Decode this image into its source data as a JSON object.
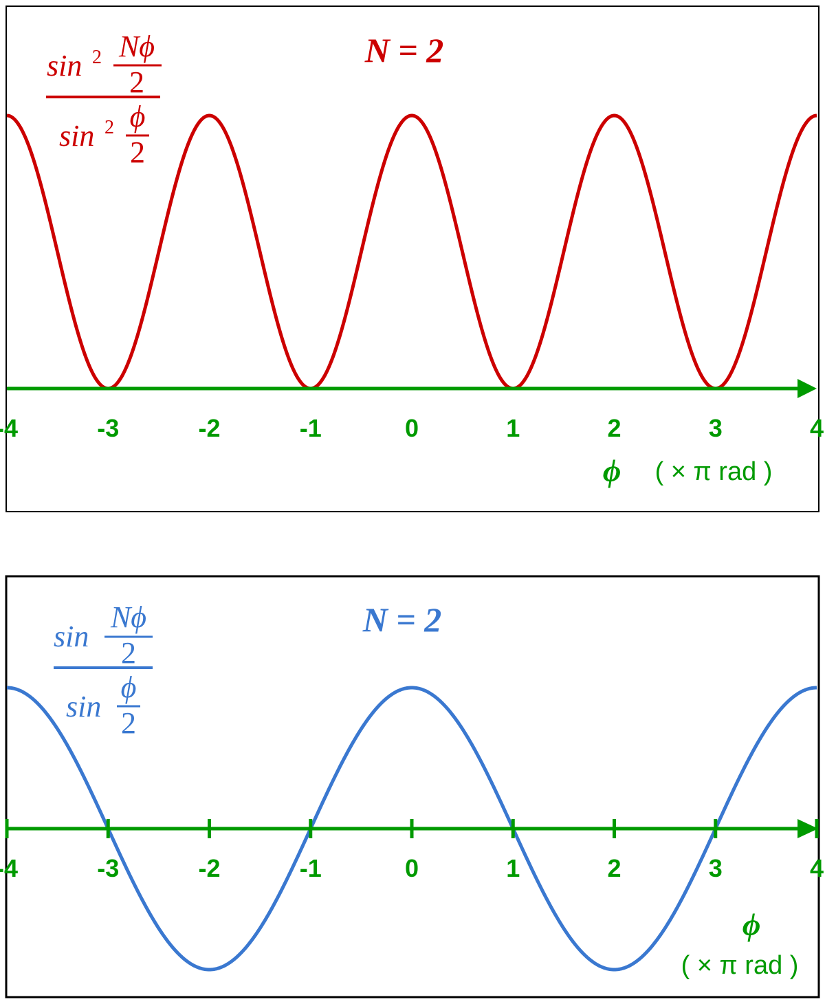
{
  "colors": {
    "red": "#cc0000",
    "green": "#009a00",
    "blue": "#3a78d0",
    "frame": "#000000"
  },
  "chart_data": [
    {
      "type": "line",
      "title": "N = 2",
      "formula": {
        "num_func": "sin",
        "num_power": "2",
        "num_top": "Nϕ",
        "num_bottom": "2",
        "den_func": "sin",
        "den_power": "2",
        "den_top": "ϕ",
        "den_bottom": "2"
      },
      "xlabel": {
        "symbol": "ϕ",
        "unit": "( × π  rad )"
      },
      "xlim": [
        -4,
        4
      ],
      "ylim": [
        0,
        4
      ],
      "x_ticks": [
        "-4",
        "-3",
        "-2",
        "-1",
        "0",
        "1",
        "2",
        "3",
        "4"
      ],
      "tick_marks": false,
      "series": [
        {
          "color": "#cc0000",
          "function": "sin^2(N*phi/2)/sin^2(phi/2), N=2",
          "x": [
            -4,
            -3,
            -2,
            -1,
            0,
            1,
            2,
            3,
            4
          ],
          "y": [
            4,
            0,
            4,
            0,
            4,
            0,
            4,
            0,
            4
          ]
        }
      ]
    },
    {
      "type": "line",
      "title": "N = 2",
      "formula": {
        "num_func": "sin",
        "num_top": "Nϕ",
        "num_bottom": "2",
        "den_func": "sin",
        "den_top": "ϕ",
        "den_bottom": "2"
      },
      "xlabel": {
        "symbol": "ϕ",
        "unit": "( × π  rad )"
      },
      "xlim": [
        -4,
        4
      ],
      "ylim": [
        -2,
        2
      ],
      "x_ticks": [
        "-4",
        "-3",
        "-2",
        "-1",
        "0",
        "1",
        "2",
        "3",
        "4"
      ],
      "tick_marks": true,
      "series": [
        {
          "color": "#3a78d0",
          "function": "sin(N*phi/2)/sin(phi/2), N=2",
          "x": [
            -4,
            -3,
            -2,
            -1,
            0,
            1,
            2,
            3,
            4
          ],
          "y": [
            2,
            0,
            -2,
            0,
            2,
            0,
            -2,
            0,
            2
          ]
        }
      ]
    }
  ]
}
